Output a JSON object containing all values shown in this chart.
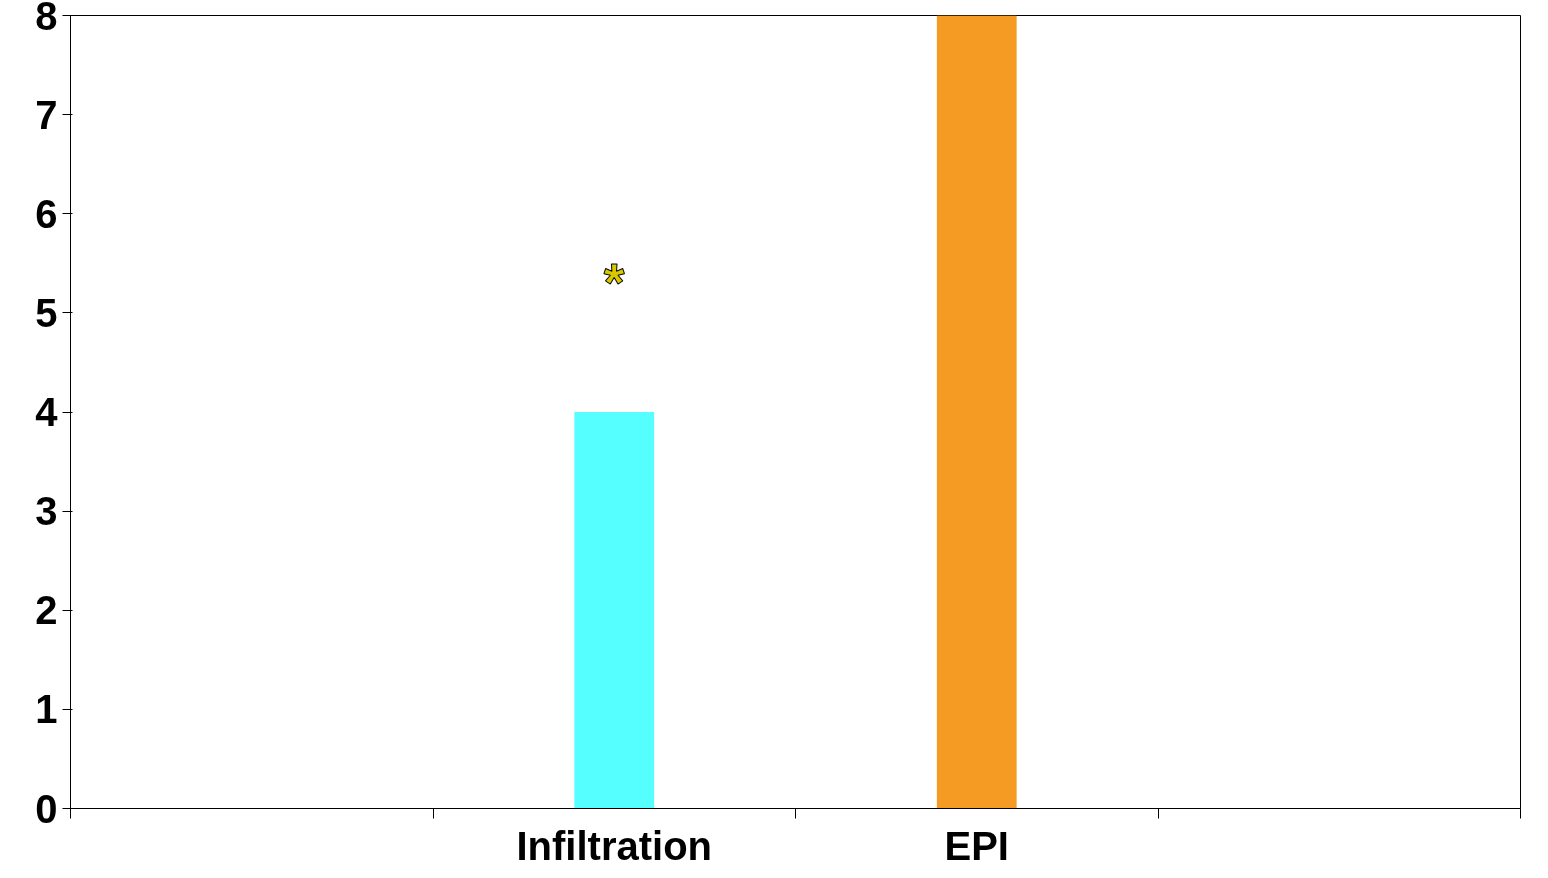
{
  "chart_data": {
    "type": "bar",
    "categories": [
      null,
      "Infiltration",
      "EPI",
      null
    ],
    "values": [
      null,
      4,
      8,
      null
    ],
    "colors": [
      "#55ffff",
      "#55ffff",
      "#f59a23",
      "#f59a23"
    ],
    "ylim": [
      0,
      8
    ],
    "yticks": [
      0,
      1,
      2,
      3,
      4,
      5,
      6,
      7,
      8
    ],
    "grid": false,
    "annotations": [
      "*"
    ]
  }
}
